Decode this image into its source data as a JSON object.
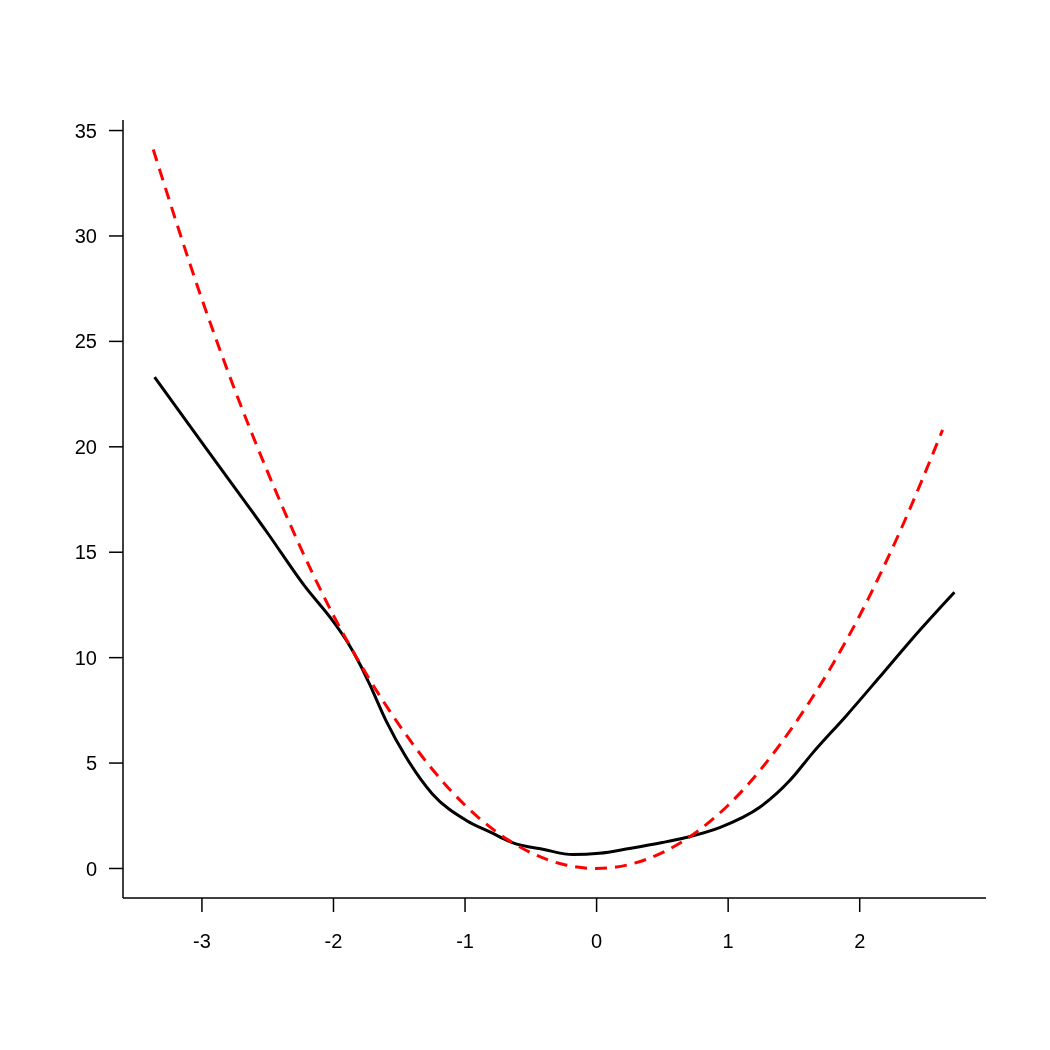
{
  "chart_data": {
    "type": "line",
    "xlim": [
      -3.6,
      2.96
    ],
    "ylim": [
      -1.4,
      35.5
    ],
    "xticks": [
      -3,
      -2,
      -1,
      0,
      1,
      2
    ],
    "yticks": [
      0,
      5,
      10,
      15,
      20,
      25,
      30,
      35
    ],
    "marker": "none",
    "series": [
      {
        "color": "#000000",
        "line_style": "solid",
        "x": [
          -3.36,
          -3.0,
          -2.5,
          -2.22,
          -2.0,
          -1.9,
          -1.8,
          -1.73,
          -1.6,
          -1.45,
          -1.25,
          -0.99,
          -0.8,
          -0.64,
          -0.4,
          -0.18,
          0.02,
          0.25,
          0.5,
          0.68,
          0.94,
          1.24,
          1.47,
          1.64,
          1.9,
          2.15,
          2.4,
          2.72
        ],
        "values": [
          23.3,
          20.2,
          15.9,
          13.4,
          11.7,
          10.8,
          9.7,
          8.8,
          7.0,
          5.3,
          3.55,
          2.28,
          1.7,
          1.23,
          0.9,
          0.66,
          0.72,
          0.95,
          1.23,
          1.47,
          1.95,
          2.9,
          4.18,
          5.46,
          7.26,
          9.07,
          10.9,
          13.1
        ]
      },
      {
        "color": "#ff0000",
        "line_style": "dashed",
        "x": [
          -3.37,
          -3.0,
          -2.75,
          -2.5,
          -2.0,
          -1.5,
          -1.0,
          -0.5,
          -0.25,
          0,
          0.25,
          0.5,
          1.0,
          1.5,
          2.0,
          2.3,
          2.63
        ],
        "values": [
          34.1,
          27,
          22.7,
          18.8,
          12,
          6.8,
          3,
          0.75,
          0.19,
          0,
          0.19,
          0.75,
          3,
          6.8,
          12,
          15.9,
          20.8
        ]
      }
    ]
  }
}
